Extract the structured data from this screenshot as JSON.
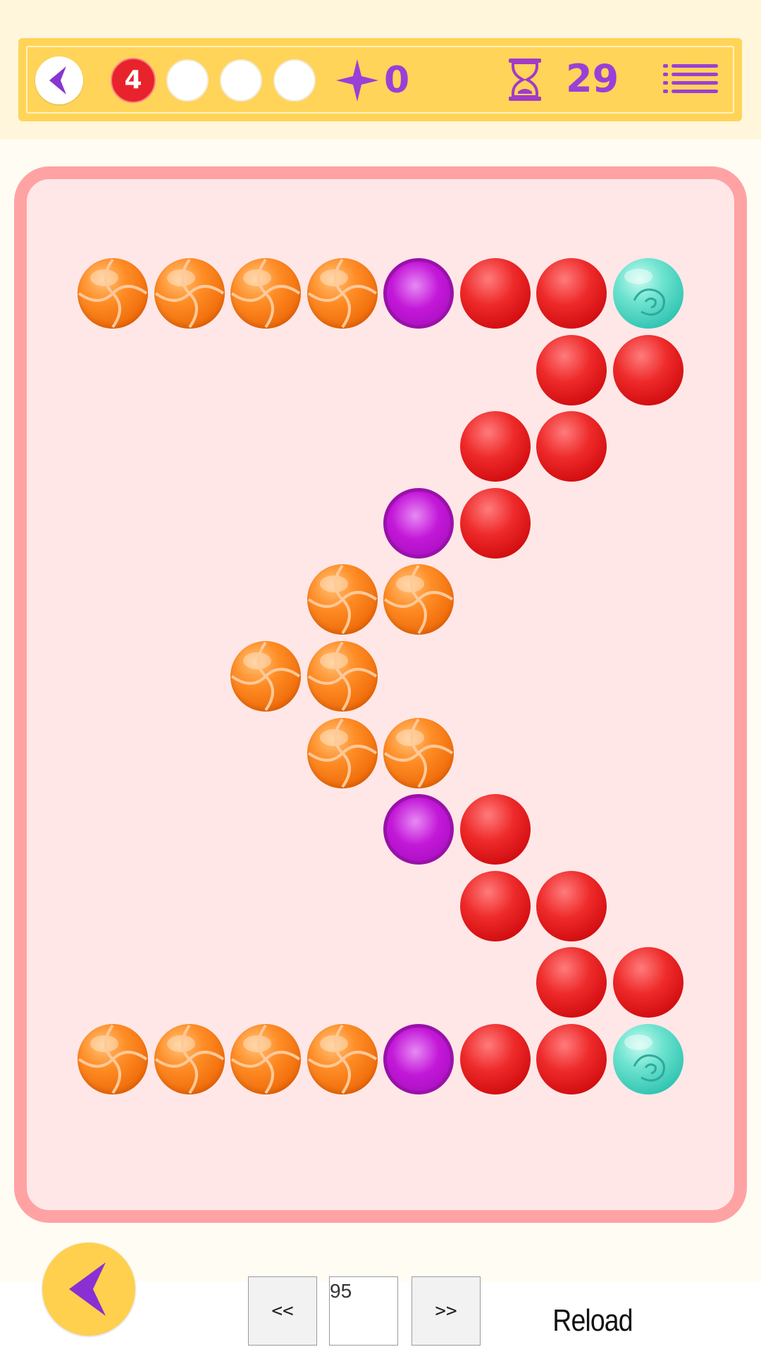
{
  "hud": {
    "lives": "4",
    "empty_slots": 3,
    "stars": "0",
    "time_left": "29"
  },
  "board": {
    "rows": [
      [
        "orange",
        "orange",
        "orange",
        "orange",
        "purple",
        "red",
        "red",
        "cyan"
      ],
      [
        null,
        null,
        null,
        null,
        null,
        null,
        "red",
        "red"
      ],
      [
        null,
        null,
        null,
        null,
        null,
        "red",
        "red",
        null
      ],
      [
        null,
        null,
        null,
        null,
        "purple",
        "red",
        null,
        null
      ],
      [
        null,
        null,
        null,
        "orange",
        "orange",
        null,
        null,
        null
      ],
      [
        null,
        null,
        "orange",
        "orange",
        null,
        null,
        null,
        null
      ],
      [
        null,
        null,
        null,
        "orange",
        "orange",
        null,
        null,
        null
      ],
      [
        null,
        null,
        null,
        null,
        "purple",
        "red",
        null,
        null
      ],
      [
        null,
        null,
        null,
        null,
        null,
        "red",
        "red",
        null
      ],
      [
        null,
        null,
        null,
        null,
        null,
        null,
        "red",
        "red"
      ],
      [
        "orange",
        "orange",
        "orange",
        "orange",
        "purple",
        "red",
        "red",
        "cyan"
      ]
    ]
  },
  "footer": {
    "prev_label": "<<",
    "level_value": "95",
    "next_label": ">>",
    "reload_label": "Reload"
  },
  "icons": {
    "hud_back": "chevron-left-icon",
    "star": "star-icon",
    "hourglass": "hourglass-icon",
    "menu": "menu-list-icon",
    "big_back": "chevron-left-icon"
  },
  "colors": {
    "hud_bg": "#ffd458",
    "board_border": "#ffa2a3",
    "board_bg": "#ffe7e7",
    "accent_purple": "#9a3fd8",
    "lives_red": "#e8232c"
  }
}
